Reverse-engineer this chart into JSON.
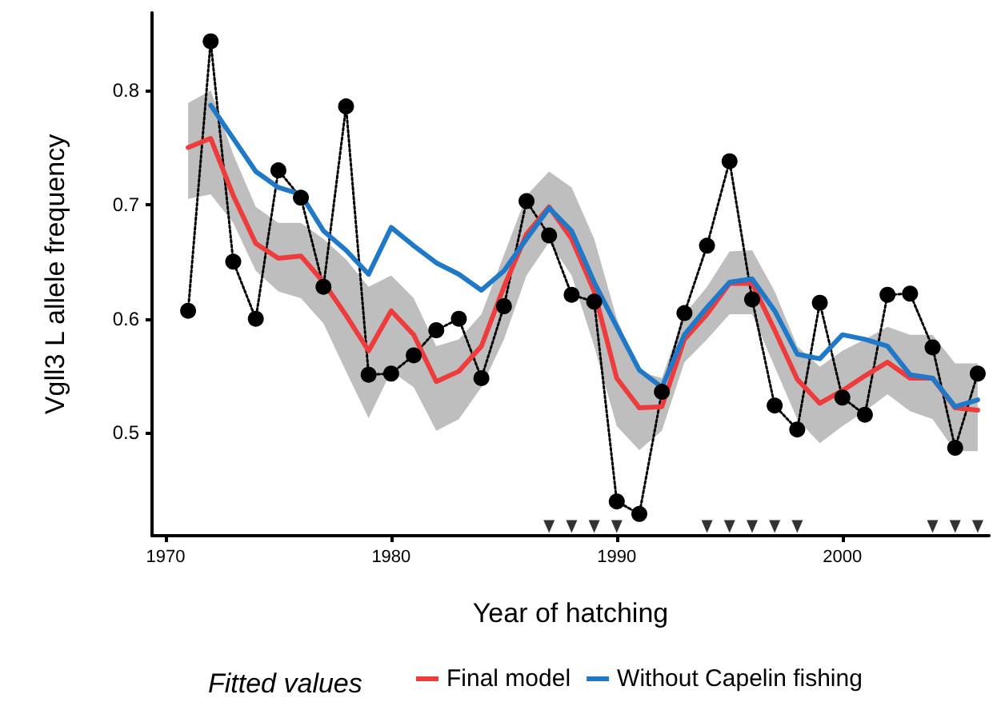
{
  "chart_data": {
    "type": "line",
    "xlabel": "Year of hatching",
    "ylabel": "Vgll3 L allele frequency",
    "legend_title": "Fitted values",
    "x": [
      1971,
      1972,
      1973,
      1974,
      1975,
      1976,
      1977,
      1978,
      1979,
      1980,
      1981,
      1982,
      1983,
      1984,
      1985,
      1986,
      1987,
      1988,
      1989,
      1990,
      1991,
      1992,
      1993,
      1994,
      1995,
      1996,
      1997,
      1998,
      1999,
      2000,
      2001,
      2002,
      2003,
      2004,
      2005,
      2006
    ],
    "series": [
      {
        "color": "#000000",
        "marker": "circle",
        "line_style": "dotted",
        "values": [
          0.607,
          0.843,
          0.65,
          0.6,
          0.73,
          0.706,
          0.628,
          0.786,
          0.551,
          0.552,
          0.568,
          0.59,
          0.6,
          0.548,
          0.611,
          0.703,
          0.673,
          0.621,
          0.615,
          0.44,
          0.429,
          0.536,
          0.605,
          0.664,
          0.738,
          0.617,
          0.524,
          0.503,
          0.614,
          0.531,
          0.516,
          0.621,
          0.622,
          0.575,
          0.487,
          0.552
        ]
      },
      {
        "name": "Final model",
        "color": "#ee3b3b",
        "marker": "none",
        "line_style": "solid",
        "values": [
          0.75,
          0.758,
          0.708,
          0.666,
          0.653,
          0.655,
          0.632,
          0.603,
          0.572,
          0.607,
          0.586,
          0.545,
          0.554,
          0.576,
          0.628,
          0.674,
          0.698,
          0.67,
          0.624,
          0.548,
          0.522,
          0.523,
          0.582,
          0.604,
          0.631,
          0.631,
          0.59,
          0.547,
          0.526,
          0.537,
          0.55,
          0.562,
          0.548,
          0.548,
          0.522,
          0.52
        ],
        "lower": [
          0.705,
          0.709,
          0.684,
          0.642,
          0.624,
          0.618,
          0.596,
          0.554,
          0.513,
          0.554,
          0.54,
          0.502,
          0.512,
          0.54,
          0.582,
          0.638,
          0.667,
          0.638,
          0.576,
          0.506,
          0.485,
          0.502,
          0.562,
          0.582,
          0.604,
          0.604,
          0.558,
          0.512,
          0.491,
          0.506,
          0.519,
          0.534,
          0.519,
          0.512,
          0.484,
          0.484
        ],
        "upper": [
          0.789,
          0.8,
          0.744,
          0.698,
          0.684,
          0.684,
          0.67,
          0.652,
          0.628,
          0.638,
          0.618,
          0.576,
          0.582,
          0.604,
          0.656,
          0.708,
          0.729,
          0.715,
          0.67,
          0.6,
          0.554,
          0.548,
          0.604,
          0.628,
          0.659,
          0.66,
          0.624,
          0.576,
          0.558,
          0.572,
          0.582,
          0.593,
          0.586,
          0.586,
          0.561,
          0.561
        ]
      },
      {
        "name": "Without Capelin fishing",
        "color": "#1f78c8",
        "marker": "none",
        "line_style": "solid",
        "values": [
          null,
          0.787,
          0.758,
          0.729,
          0.715,
          0.709,
          0.677,
          0.66,
          0.639,
          0.68,
          0.664,
          0.649,
          0.639,
          0.625,
          0.642,
          0.67,
          0.697,
          0.677,
          0.632,
          0.593,
          0.555,
          0.54,
          0.586,
          0.61,
          0.632,
          0.635,
          0.607,
          0.569,
          0.565,
          0.586,
          0.582,
          0.576,
          0.551,
          0.548,
          0.523,
          0.529
        ]
      },
      {
        "type": "scatter",
        "color": "#000000",
        "marker": "triangle",
        "x": [
          1987,
          1988,
          1989,
          1990,
          1994,
          1995,
          1996,
          1997,
          1998,
          2004,
          2005,
          2006
        ],
        "values": [
          0.418,
          0.418,
          0.418,
          0.418,
          0.418,
          0.418,
          0.418,
          0.418,
          0.418,
          0.418,
          0.418,
          0.418
        ]
      }
    ],
    "xlim": [
      1969.4,
      2006.5
    ],
    "xticks": [
      1970,
      1980,
      1990,
      2000
    ],
    "ylim": [
      0.41,
      0.868
    ],
    "yticks": [
      0.5,
      0.6,
      0.7,
      0.8
    ],
    "grid": false,
    "legend": "bottom"
  }
}
